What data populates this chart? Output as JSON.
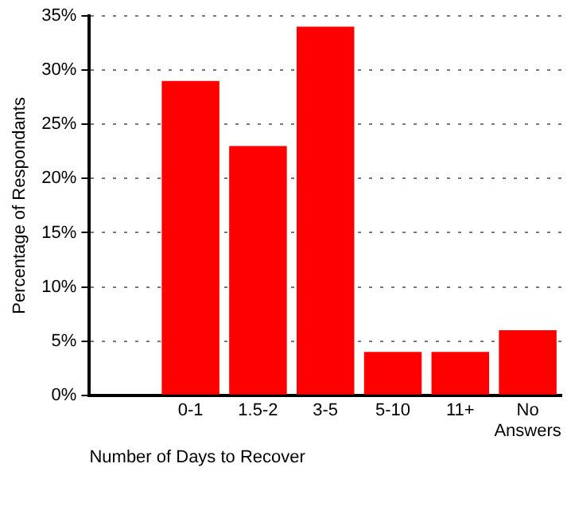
{
  "chart_data": {
    "type": "bar",
    "xlabel": "Number of Days to Recover",
    "ylabel": "Percentage of Respondants",
    "categories": [
      null,
      "0-1",
      "1.5-2",
      "3-5",
      "5-10",
      "11+",
      "No Answers"
    ],
    "values": [
      null,
      29,
      23,
      34,
      4,
      4,
      6
    ],
    "color": "#ff0000",
    "ylim": [
      0,
      35
    ],
    "yticks": [
      {
        "value": 0,
        "label": "0%"
      },
      {
        "value": 5,
        "label": "5%"
      },
      {
        "value": 10,
        "label": "10%"
      },
      {
        "value": 15,
        "label": "15%"
      },
      {
        "value": 20,
        "label": "20%"
      },
      {
        "value": 25,
        "label": "25%"
      },
      {
        "value": 30,
        "label": "30%"
      },
      {
        "value": 35,
        "label": "35%"
      }
    ],
    "grid": "y",
    "legend": false
  }
}
